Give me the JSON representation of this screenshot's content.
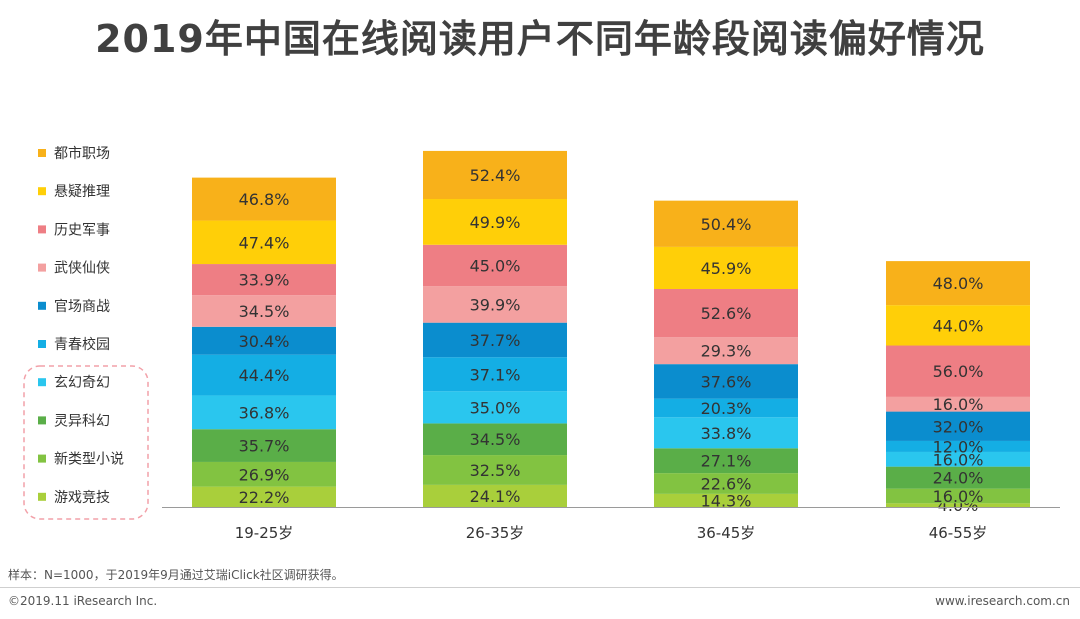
{
  "title": "2019年中国在线阅读用户不同年龄段阅读偏好情况",
  "note": "样本：N=1000，于2019年9月通过艾瑞iClick社区调研获得。",
  "footer": {
    "copyright": "©2019.11 iResearch Inc.",
    "website": "www.iresearch.com.cn"
  },
  "chart_data": {
    "type": "bar",
    "stacked": true,
    "title": "2019年中国在线阅读用户不同年龄段阅读偏好情况",
    "categories": [
      "19-25岁",
      "26-35岁",
      "36-45岁",
      "46-55岁"
    ],
    "legend_position": "left",
    "grid": false,
    "series": [
      {
        "name": "游戏竞技",
        "color": "#a9cf3b",
        "values": [
          22.2,
          24.1,
          14.3,
          4.0
        ]
      },
      {
        "name": "新类型小说",
        "color": "#82c341",
        "values": [
          26.9,
          32.5,
          22.6,
          16.0
        ]
      },
      {
        "name": "灵异科幻",
        "color": "#5aae48",
        "values": [
          35.7,
          34.5,
          27.1,
          24.0
        ]
      },
      {
        "name": "玄幻奇幻",
        "color": "#2ac6ee",
        "values": [
          36.8,
          35.0,
          33.8,
          16.0
        ]
      },
      {
        "name": "青春校园",
        "color": "#14aee4",
        "values": [
          44.4,
          37.1,
          20.3,
          12.0
        ]
      },
      {
        "name": "官场商战",
        "color": "#0b8dce",
        "values": [
          30.4,
          37.7,
          37.6,
          32.0
        ]
      },
      {
        "name": "武侠仙侠",
        "color": "#f3a0a0",
        "values": [
          34.5,
          39.9,
          29.3,
          16.0
        ]
      },
      {
        "name": "历史军事",
        "color": "#ee7e84",
        "values": [
          33.9,
          45.0,
          52.6,
          56.0
        ]
      },
      {
        "name": "悬疑推理",
        "color": "#ffcf08",
        "values": [
          47.4,
          49.9,
          45.9,
          44.0
        ]
      },
      {
        "name": "都市职场",
        "color": "#f8b11a",
        "values": [
          46.8,
          52.4,
          50.4,
          48.0
        ]
      }
    ],
    "value_format": "%"
  }
}
